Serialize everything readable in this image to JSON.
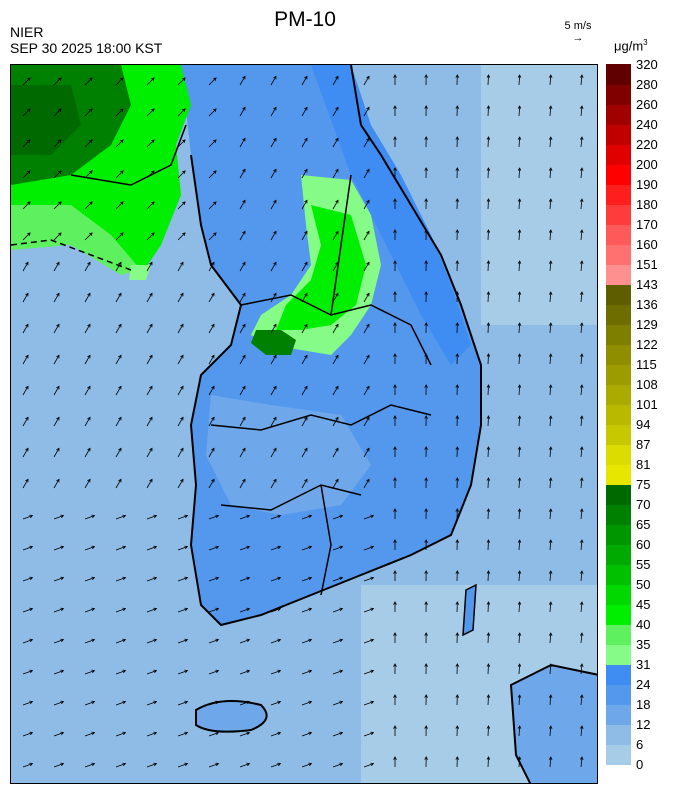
{
  "header": {
    "title": "PM-10",
    "org": "NIER",
    "timestamp": "SEP 30 2025 18:00 KST",
    "wind_scale": "5 m/s",
    "unit_base": "μg/m",
    "unit_exp": "3"
  },
  "legend": {
    "ticks": [
      "0",
      "6",
      "12",
      "18",
      "24",
      "31",
      "35",
      "40",
      "45",
      "50",
      "55",
      "60",
      "65",
      "70",
      "75",
      "81",
      "87",
      "94",
      "101",
      "108",
      "115",
      "122",
      "129",
      "136",
      "143",
      "151",
      "160",
      "170",
      "180",
      "190",
      "200",
      "220",
      "240",
      "260",
      "280",
      "320"
    ],
    "colors": [
      "#a7cce7",
      "#8fbce6",
      "#6fa8ea",
      "#5498ed",
      "#3f8cf2",
      "#87fb87",
      "#5ef05e",
      "#00ee00",
      "#00d800",
      "#00c000",
      "#00aa00",
      "#009600",
      "#008000",
      "#006a00",
      "#e6e600",
      "#dcdc00",
      "#c8c800",
      "#b9b900",
      "#aaaa00",
      "#9c9c00",
      "#8e8e00",
      "#7e7e00",
      "#6e6e00",
      "#5e5e00",
      "#ff9090",
      "#ff7070",
      "#ff5a5a",
      "#ff3c3c",
      "#ff1e1e",
      "#ff0000",
      "#e00000",
      "#c00000",
      "#a00000",
      "#800000",
      "#600000"
    ]
  },
  "colors": {
    "sea_low": "#a7cce7",
    "sea": "#8fbce6",
    "land_low": "#6fa8ea",
    "land_mid": "#5498ed",
    "pm_light_green": "#87fb87",
    "pm_green": "#00ee00",
    "pm_dark_green": "#008000",
    "pm_darkest_green": "#006a00"
  }
}
